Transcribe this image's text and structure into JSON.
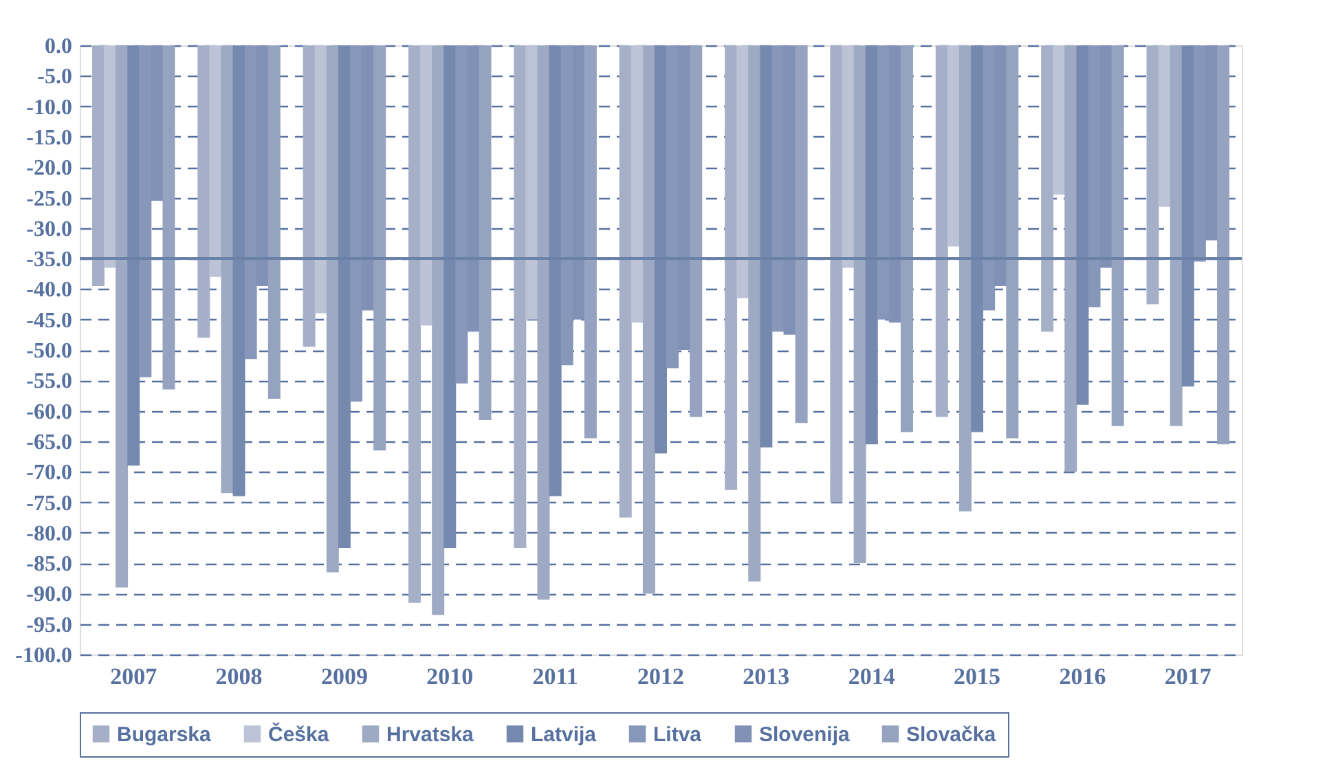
{
  "chart_data": {
    "type": "bar",
    "categories": [
      "2007",
      "2008",
      "2009",
      "2010",
      "2011",
      "2012",
      "2013",
      "2014",
      "2015",
      "2016",
      "2017"
    ],
    "series": [
      {
        "name": "Bugarska",
        "color": "#a5b0c8",
        "values": [
          -39.5,
          -48,
          -49.5,
          -91.5,
          -82.5,
          -77.5,
          -73,
          -75,
          -61,
          -47,
          -42.5
        ]
      },
      {
        "name": "Češka",
        "color": "#bcc3d6",
        "values": [
          -36.5,
          -38,
          -44,
          -46,
          -45,
          -45.5,
          -41.5,
          -36.5,
          -33,
          -24.5,
          -26.5
        ]
      },
      {
        "name": "Hrvatska",
        "color": "#9ea9c4",
        "values": [
          -89,
          -73.5,
          -86.5,
          -93.5,
          -91,
          -90,
          -88,
          -85,
          -76.5,
          -70,
          -62.5
        ]
      },
      {
        "name": "Latvija",
        "color": "#7489ad",
        "values": [
          -69,
          -74,
          -82.5,
          -82.5,
          -74,
          -67,
          -66,
          -65.5,
          -63.5,
          -59,
          -56
        ]
      },
      {
        "name": "Litva",
        "color": "#8797b9",
        "values": [
          -54.5,
          -51.5,
          -58.5,
          -55.5,
          -52.5,
          -53,
          -47,
          -45,
          -43.5,
          -43,
          -35.5
        ]
      },
      {
        "name": "Slovenija",
        "color": "#8091b5",
        "values": [
          -25.5,
          -39.5,
          -43.5,
          -47,
          -45,
          -50,
          -47.5,
          -45.5,
          -39.5,
          -36.5,
          -32
        ]
      },
      {
        "name": "Slovačka",
        "color": "#95a3c0",
        "values": [
          -56.5,
          -58,
          -66.5,
          -61.5,
          -64.5,
          -61,
          -62,
          -63.5,
          -64.5,
          -62.5,
          -65.5
        ]
      }
    ],
    "ylim": [
      -100,
      0
    ],
    "yticks": [
      {
        "value": 0,
        "label": "0.0"
      },
      {
        "value": -5,
        "label": "-5.0"
      },
      {
        "value": -10,
        "label": "-10.0"
      },
      {
        "value": -15,
        "label": "-15.0"
      },
      {
        "value": -20,
        "label": "-20.0"
      },
      {
        "value": -25,
        "label": "-25.0"
      },
      {
        "value": -30,
        "label": "-30.0"
      },
      {
        "value": -35,
        "label": "-35.0"
      },
      {
        "value": -40,
        "label": "-40.0"
      },
      {
        "value": -45,
        "label": "-45.0"
      },
      {
        "value": -50,
        "label": "-50.0"
      },
      {
        "value": -55,
        "label": "-55.0"
      },
      {
        "value": -60,
        "label": "-60.0"
      },
      {
        "value": -65,
        "label": "-65.0"
      },
      {
        "value": -70,
        "label": "-70.0"
      },
      {
        "value": -75,
        "label": "-75.0"
      },
      {
        "value": -80,
        "label": "-80.0"
      },
      {
        "value": -85,
        "label": "-85.0"
      },
      {
        "value": -90,
        "label": "-90.0"
      },
      {
        "value": -95,
        "label": "-95.0"
      },
      {
        "value": -100,
        "label": "-100.0"
      }
    ],
    "ref_lines": [
      {
        "axis": "y",
        "value": -35,
        "color": "#6a82a8"
      }
    ],
    "grid": "y",
    "legend": "bottom"
  }
}
